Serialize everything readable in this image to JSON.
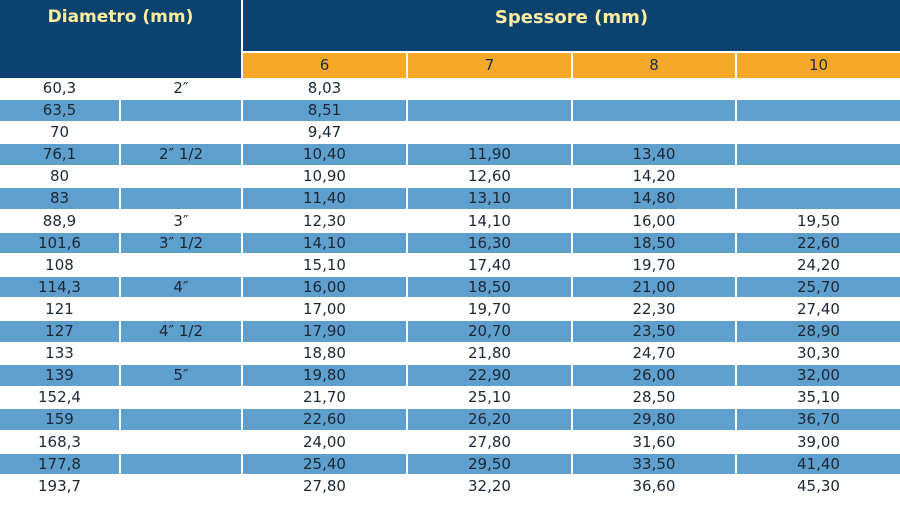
{
  "header": {
    "diameter_title": "Diametro (mm)",
    "thickness_title": "Spessore (mm)",
    "thickness_columns": [
      "6",
      "7",
      "8",
      "10"
    ]
  },
  "colors": {
    "header_navy": "#0b4270",
    "header_text": "#ffeea0",
    "thickness_orange": "#f6a928",
    "band_blue": "#5e9fce"
  },
  "rows": [
    {
      "d": "60,3",
      "inch": "2″",
      "v": [
        "8,03",
        "",
        "",
        ""
      ]
    },
    {
      "d": "63,5",
      "inch": "",
      "v": [
        "8,51",
        "",
        "",
        ""
      ]
    },
    {
      "d": "70",
      "inch": "",
      "v": [
        "9,47",
        "",
        "",
        ""
      ]
    },
    {
      "d": "76,1",
      "inch": "2″ 1/2",
      "v": [
        "10,40",
        "11,90",
        "13,40",
        ""
      ]
    },
    {
      "d": "80",
      "inch": "",
      "v": [
        "10,90",
        "12,60",
        "14,20",
        ""
      ]
    },
    {
      "d": "83",
      "inch": "",
      "v": [
        "11,40",
        "13,10",
        "14,80",
        ""
      ]
    },
    {
      "d": "88,9",
      "inch": "3″",
      "v": [
        "12,30",
        "14,10",
        "16,00",
        "19,50"
      ]
    },
    {
      "d": "101,6",
      "inch": "3″ 1/2",
      "v": [
        "14,10",
        "16,30",
        "18,50",
        "22,60"
      ]
    },
    {
      "d": "108",
      "inch": "",
      "v": [
        "15,10",
        "17,40",
        "19,70",
        "24,20"
      ]
    },
    {
      "d": "114,3",
      "inch": "4″",
      "v": [
        "16,00",
        "18,50",
        "21,00",
        "25,70"
      ]
    },
    {
      "d": "121",
      "inch": "",
      "v": [
        "17,00",
        "19,70",
        "22,30",
        "27,40"
      ]
    },
    {
      "d": "127",
      "inch": "4″ 1/2",
      "v": [
        "17,90",
        "20,70",
        "23,50",
        "28,90"
      ]
    },
    {
      "d": "133",
      "inch": "",
      "v": [
        "18,80",
        "21,80",
        "24,70",
        "30,30"
      ]
    },
    {
      "d": "139",
      "inch": "5″",
      "v": [
        "19,80",
        "22,90",
        "26,00",
        "32,00"
      ]
    },
    {
      "d": "152,4",
      "inch": "",
      "v": [
        "21,70",
        "25,10",
        "28,50",
        "35,10"
      ]
    },
    {
      "d": "159",
      "inch": "",
      "v": [
        "22,60",
        "26,20",
        "29,80",
        "36,70"
      ]
    },
    {
      "d": "168,3",
      "inch": "",
      "v": [
        "24,00",
        "27,80",
        "31,60",
        "39,00"
      ]
    },
    {
      "d": "177,8",
      "inch": "",
      "v": [
        "25,40",
        "29,50",
        "33,50",
        "41,40"
      ]
    },
    {
      "d": "193,7",
      "inch": "",
      "v": [
        "27,80",
        "32,20",
        "36,60",
        "45,30"
      ]
    }
  ]
}
